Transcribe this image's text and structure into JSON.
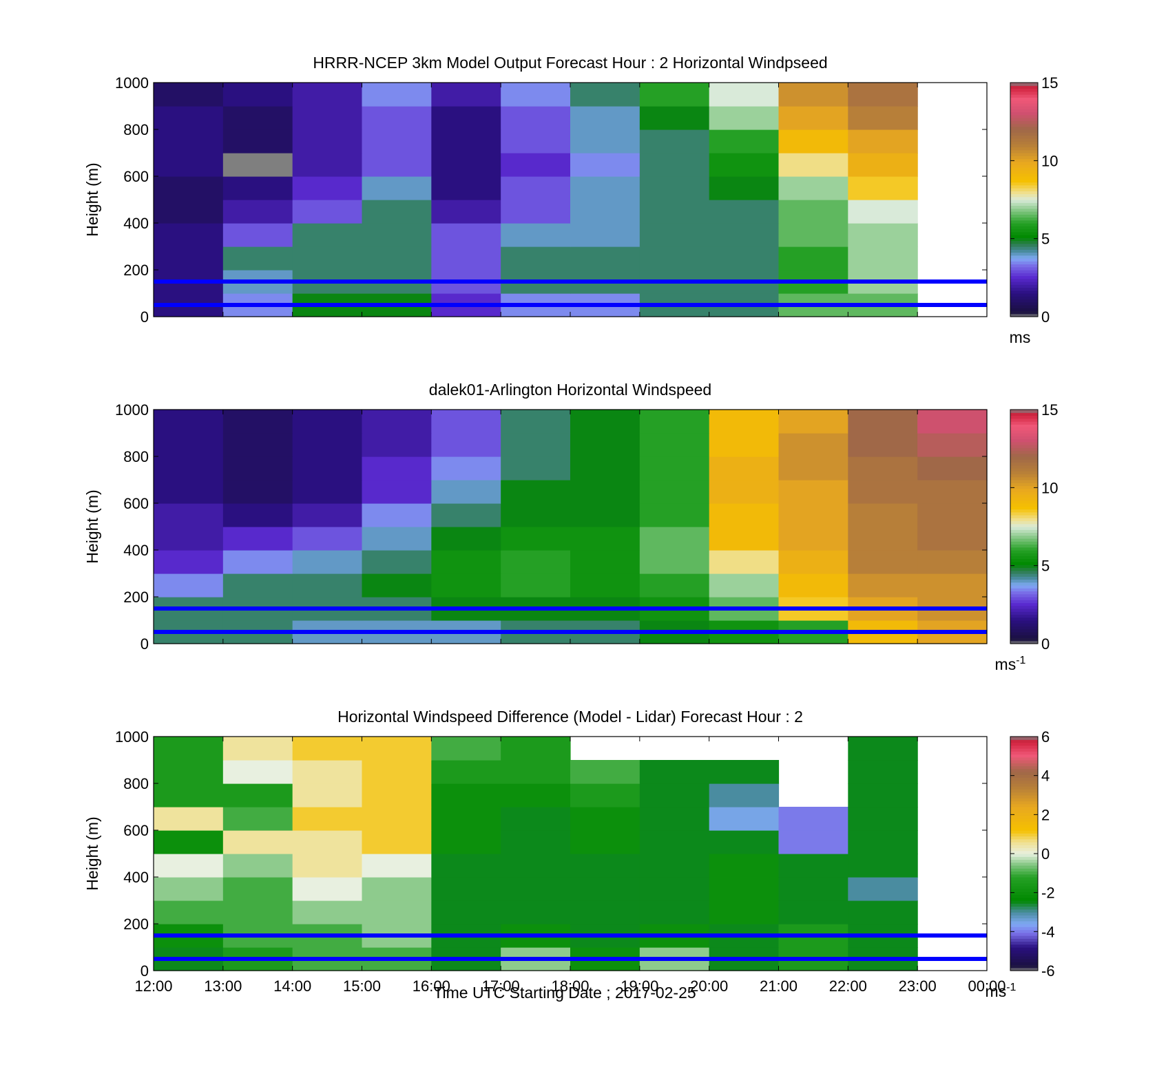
{
  "figure": {
    "xlabel": "Time UTC  Starting Date ; 2017-02-25",
    "x_tick_labels": [
      "12:00",
      "13:00",
      "14:00",
      "15:00",
      "16:00",
      "17:00",
      "18:00",
      "19:00",
      "20:00",
      "21:00",
      "22:00",
      "23:00",
      "00:00"
    ],
    "ref_lines_m": [
      150,
      50
    ],
    "ref_line_color": "#0000ff"
  },
  "chart_data": [
    {
      "type": "heatmap",
      "title": "HRRR-NCEP 3km Model Output   Forecast Hour : 2 Horizontal Windpseed",
      "ylabel": "Height (m)",
      "ylim": [
        0,
        1000
      ],
      "y_ticks": [
        0,
        200,
        400,
        600,
        800,
        1000
      ],
      "colorbar": {
        "unit": "ms",
        "unit_exp": "",
        "min": 0,
        "max": 15,
        "ticks": [
          0,
          5,
          10,
          15
        ]
      },
      "x_hours": [
        12,
        13,
        14,
        15,
        16,
        17,
        18,
        19,
        20,
        21,
        22,
        23
      ],
      "heights_m": [
        50,
        150,
        250,
        350,
        450,
        550,
        650,
        750,
        850,
        950
      ],
      "values": [
        [
          1.5,
          3.5,
          5.0,
          5.0,
          2.5,
          3.5,
          3.5,
          4.5,
          4.5,
          6.5,
          6.5,
          null
        ],
        [
          1.5,
          4.0,
          4.5,
          4.5,
          3.0,
          4.5,
          4.5,
          4.5,
          4.5,
          6.0,
          7.0,
          null
        ],
        [
          1.5,
          4.5,
          4.5,
          4.5,
          3.0,
          4.5,
          4.5,
          4.5,
          4.5,
          6.0,
          7.0,
          null
        ],
        [
          1.5,
          3.0,
          4.5,
          4.5,
          3.0,
          4.0,
          4.0,
          4.5,
          4.5,
          6.5,
          7.0,
          null
        ],
        [
          1.0,
          2.0,
          3.0,
          4.5,
          2.0,
          3.0,
          4.0,
          4.5,
          4.5,
          6.5,
          7.5,
          null
        ],
        [
          1.0,
          1.5,
          2.5,
          4.0,
          1.5,
          3.0,
          4.0,
          4.5,
          5.0,
          7.0,
          8.5,
          null
        ],
        [
          1.5,
          0.0,
          2.0,
          3.0,
          1.5,
          2.5,
          3.5,
          4.5,
          5.5,
          8.0,
          9.5,
          null
        ],
        [
          1.5,
          1.0,
          2.0,
          3.0,
          1.5,
          3.0,
          4.0,
          4.5,
          6.0,
          9.0,
          10.0,
          null
        ],
        [
          1.5,
          1.0,
          2.0,
          3.0,
          1.5,
          3.0,
          4.0,
          5.0,
          7.0,
          10.0,
          11.0,
          null
        ],
        [
          1.0,
          1.5,
          2.0,
          3.5,
          2.0,
          3.5,
          4.5,
          6.0,
          7.5,
          10.5,
          11.5,
          null
        ]
      ]
    },
    {
      "type": "heatmap",
      "title": "dalek01-Arlington  Horizontal Windspeed",
      "ylabel": "Height (m)",
      "ylim": [
        0,
        1000
      ],
      "y_ticks": [
        0,
        200,
        400,
        600,
        800,
        1000
      ],
      "colorbar": {
        "unit": "ms",
        "unit_exp": "-1",
        "min": 0,
        "max": 15,
        "ticks": [
          0,
          5,
          10,
          15
        ]
      },
      "x_hours": [
        12,
        13,
        14,
        15,
        16,
        17,
        18,
        19,
        20,
        21,
        22,
        23
      ],
      "heights_m": [
        50,
        150,
        250,
        350,
        450,
        550,
        650,
        750,
        850,
        950
      ],
      "values": [
        [
          4.5,
          4.5,
          4.0,
          4.0,
          4.0,
          4.5,
          4.5,
          5.0,
          5.5,
          6.0,
          9.0,
          10.0
        ],
        [
          4.5,
          4.5,
          4.5,
          4.5,
          5.0,
          5.0,
          5.0,
          5.5,
          6.5,
          8.5,
          10.0,
          10.5
        ],
        [
          3.5,
          4.5,
          4.5,
          5.0,
          5.5,
          6.0,
          5.5,
          6.0,
          7.0,
          9.0,
          10.5,
          10.5
        ],
        [
          2.5,
          3.5,
          4.0,
          4.5,
          5.5,
          6.0,
          5.5,
          6.5,
          8.0,
          9.5,
          11.0,
          11.0
        ],
        [
          2.0,
          2.5,
          3.0,
          4.0,
          5.0,
          5.5,
          5.5,
          6.5,
          9.0,
          10.0,
          11.0,
          11.5
        ],
        [
          2.0,
          1.5,
          2.0,
          3.5,
          4.5,
          5.0,
          5.0,
          6.0,
          9.0,
          10.0,
          11.0,
          11.5
        ],
        [
          1.5,
          1.0,
          1.5,
          2.5,
          4.0,
          5.0,
          5.0,
          6.0,
          9.5,
          10.0,
          11.5,
          11.5
        ],
        [
          1.5,
          1.0,
          1.5,
          2.5,
          3.5,
          4.5,
          5.0,
          6.0,
          9.5,
          10.5,
          11.5,
          12.0
        ],
        [
          1.5,
          1.0,
          1.5,
          2.0,
          3.0,
          4.5,
          5.0,
          6.0,
          9.0,
          10.5,
          12.0,
          12.5
        ],
        [
          1.5,
          1.0,
          1.5,
          2.0,
          3.0,
          4.5,
          5.0,
          6.0,
          9.0,
          10.0,
          12.0,
          13.0
        ]
      ]
    },
    {
      "type": "heatmap",
      "title": "Horizontal Windspeed Difference (Model - Lidar) Forecast Hour : 2",
      "ylabel": "Height (m)",
      "ylim": [
        0,
        1000
      ],
      "y_ticks": [
        0,
        200,
        400,
        600,
        800,
        1000
      ],
      "colorbar": {
        "unit": "ms",
        "unit_exp": "-1",
        "min": -6,
        "max": 6,
        "ticks": [
          -6,
          -4,
          -2,
          0,
          2,
          4,
          6
        ]
      },
      "x_hours": [
        12,
        13,
        14,
        15,
        16,
        17,
        18,
        19,
        20,
        21,
        22,
        23
      ],
      "heights_m": [
        50,
        150,
        250,
        350,
        450,
        550,
        650,
        750,
        850,
        950
      ],
      "values": [
        [
          -2.5,
          -1.5,
          -1.0,
          -1.0,
          -2.5,
          -0.5,
          -2.0,
          -0.5,
          -2.5,
          -1.5,
          -2.5,
          null
        ],
        [
          -2.0,
          -1.0,
          -1.0,
          -0.5,
          -2.5,
          -2.0,
          -2.5,
          -2.0,
          -2.5,
          -1.5,
          -2.5,
          null
        ],
        [
          -1.0,
          -1.0,
          -0.5,
          -0.5,
          -2.5,
          -2.5,
          -2.5,
          -2.5,
          -2.0,
          -2.5,
          -2.5,
          null
        ],
        [
          -0.5,
          -1.0,
          0.0,
          -0.5,
          -2.5,
          -2.5,
          -2.5,
          -2.5,
          -2.0,
          -2.5,
          -3.0,
          null
        ],
        [
          0.0,
          -0.5,
          0.5,
          0.0,
          -2.5,
          -2.5,
          -2.5,
          -2.5,
          -2.0,
          -2.5,
          -2.5,
          null
        ],
        [
          -2.0,
          0.5,
          0.5,
          1.0,
          -2.0,
          -2.5,
          -2.0,
          -2.5,
          -2.5,
          -4.0,
          -2.5,
          null
        ],
        [
          0.5,
          -1.0,
          1.0,
          1.0,
          -2.0,
          -2.5,
          -2.0,
          -2.5,
          -3.5,
          -4.0,
          -2.5,
          null
        ],
        [
          -1.5,
          -1.5,
          0.5,
          1.0,
          -2.0,
          -2.0,
          -1.5,
          -2.5,
          -3.0,
          null,
          -2.5,
          null
        ],
        [
          -1.5,
          0.0,
          0.5,
          1.0,
          -1.5,
          -1.5,
          -1.0,
          -2.5,
          -2.5,
          null,
          -2.5,
          null
        ],
        [
          -1.5,
          0.5,
          1.0,
          1.0,
          -1.0,
          -1.5,
          null,
          null,
          null,
          null,
          -2.5,
          null
        ]
      ]
    }
  ]
}
